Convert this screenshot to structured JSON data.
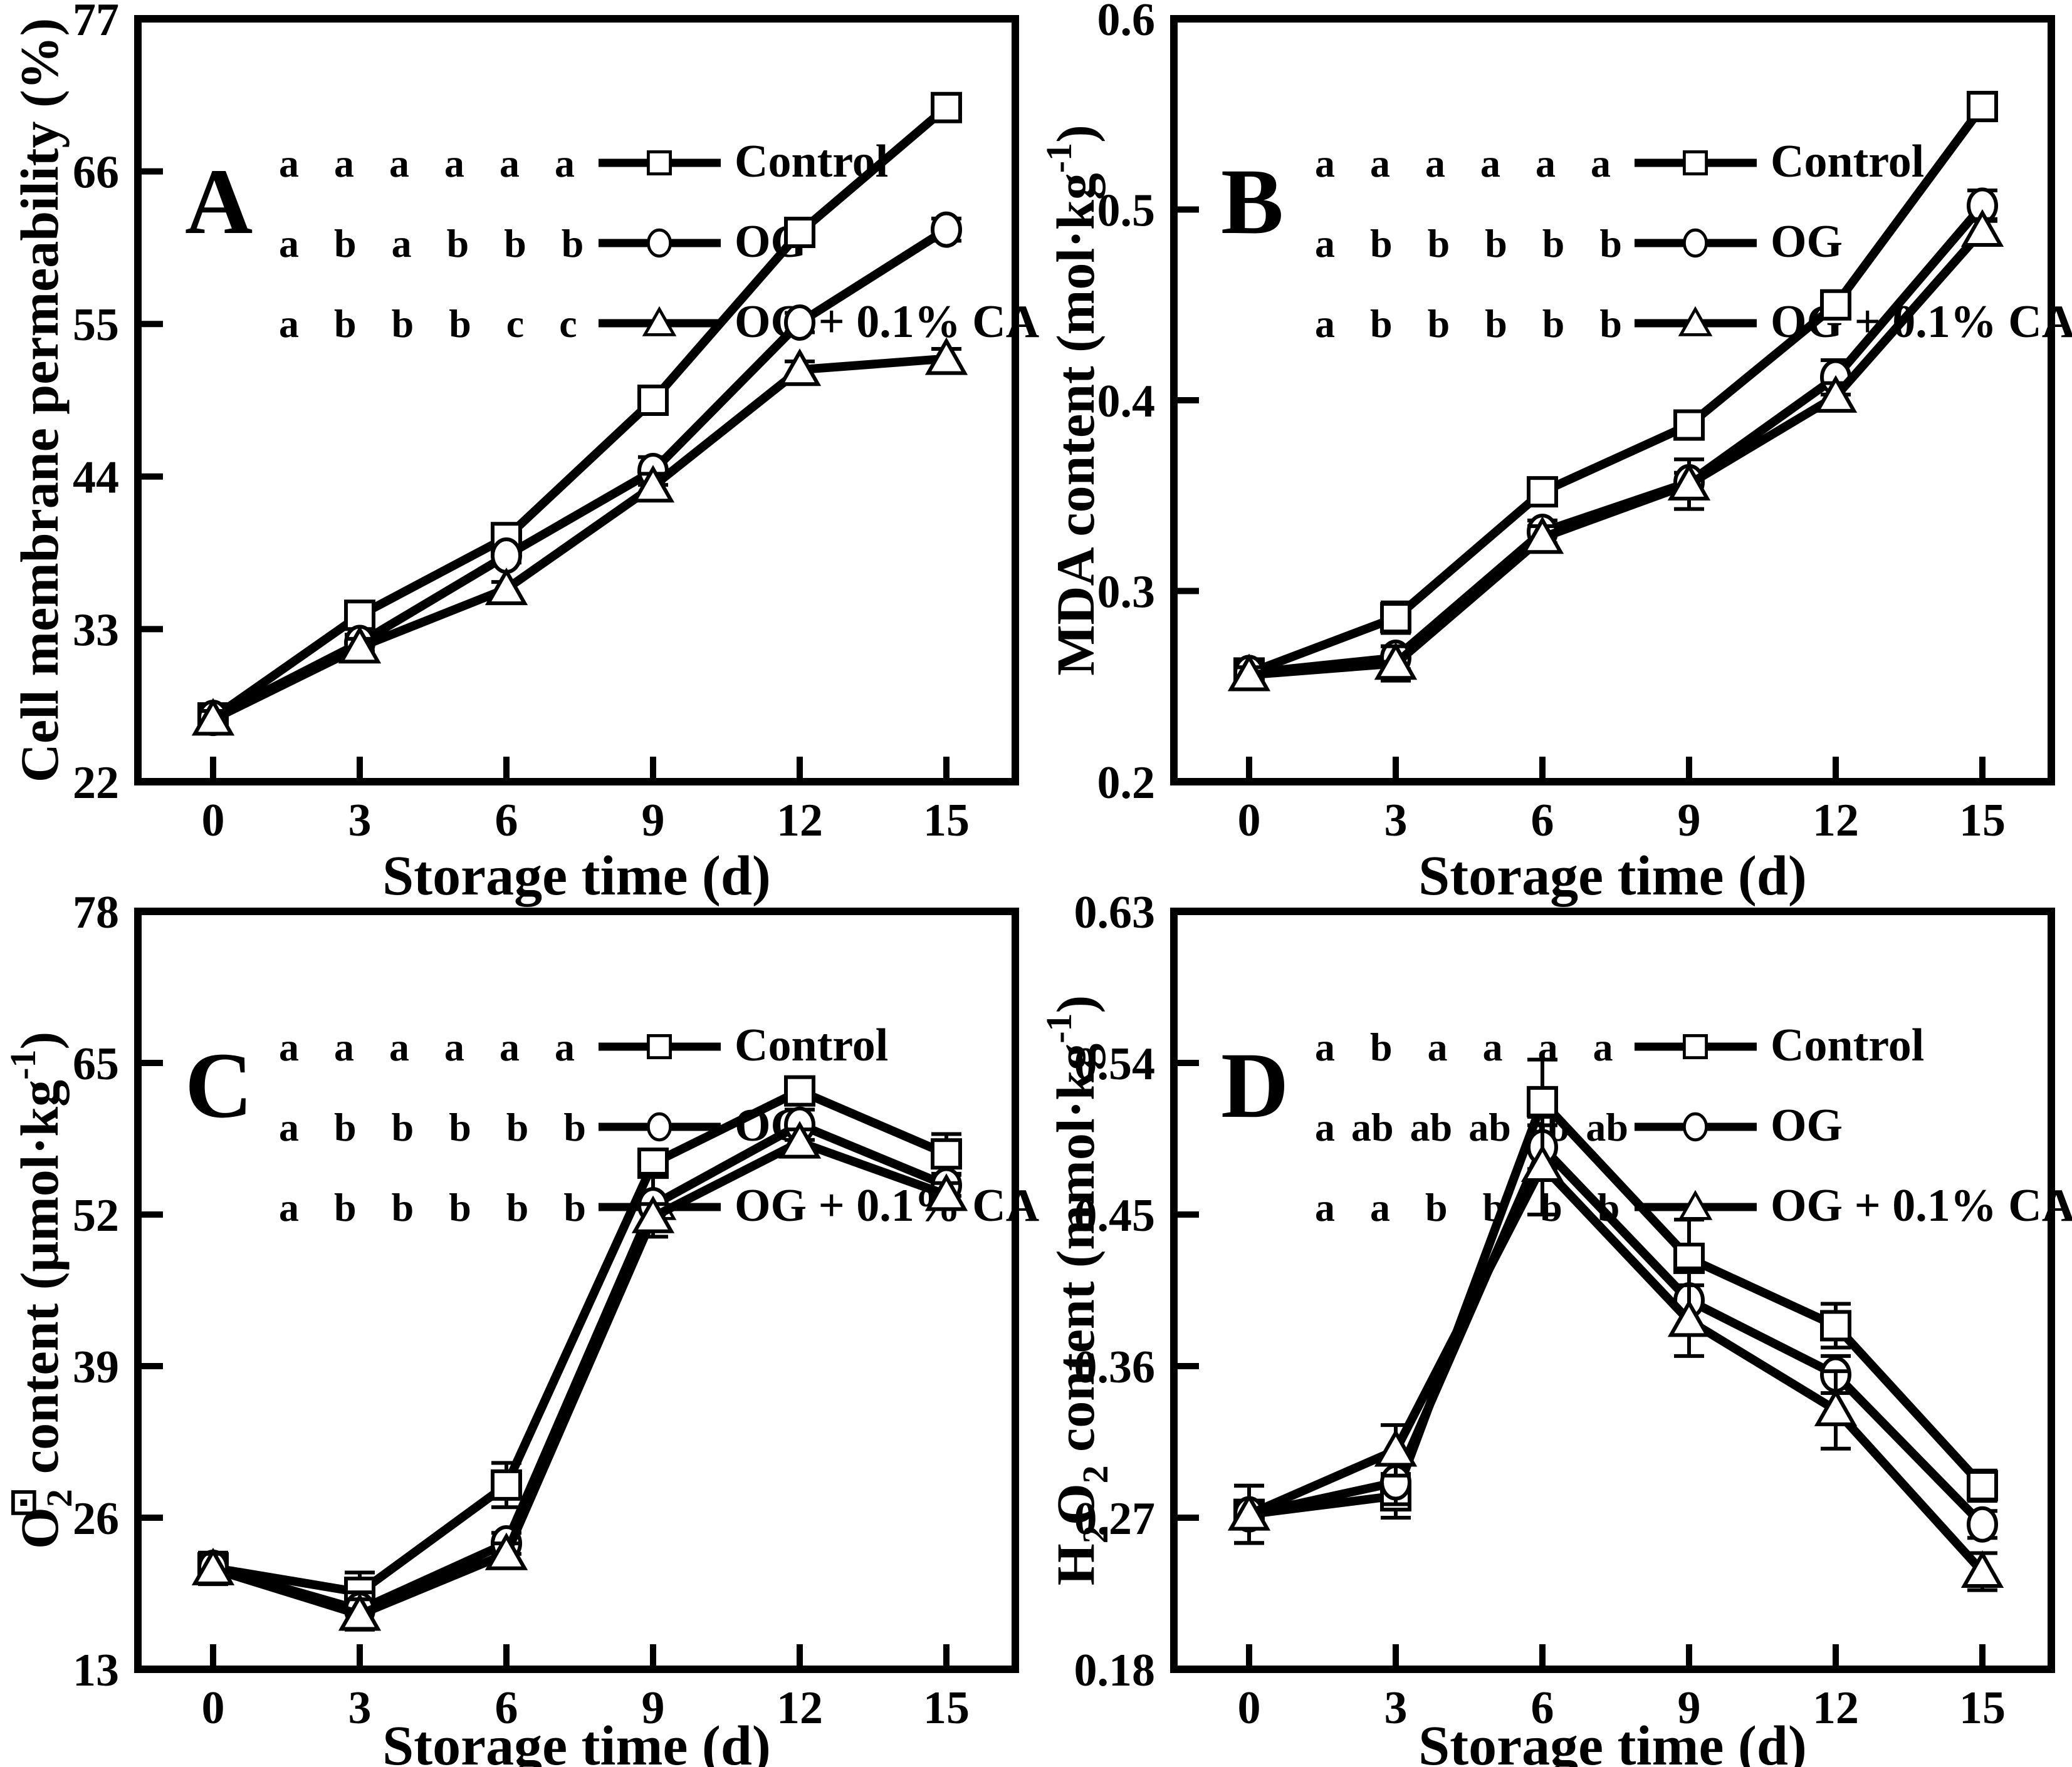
{
  "figure": {
    "background": "#ffffff",
    "ink": "#000000",
    "description": "Four-panel line figure (A-D) of fruit storage physiology measurements"
  },
  "x_axis": {
    "label": "Storage time (d)",
    "ticks": [
      "0",
      "3",
      "6",
      "9",
      "12",
      "15"
    ],
    "range": [
      0,
      15
    ]
  },
  "legend": {
    "entries": [
      {
        "label": "Control",
        "marker": "square"
      },
      {
        "label": "OG",
        "marker": "circle"
      },
      {
        "label": "OG + 0.1% CA",
        "marker": "triangle"
      }
    ]
  },
  "chart_data": [
    {
      "type": "line",
      "panel_label": "A",
      "y_label_segments": [
        {
          "t": "Cell membrane permeability (%)"
        }
      ],
      "y_ticks": [
        "22",
        "33",
        "44",
        "55",
        "66",
        "77"
      ],
      "ylim": [
        22,
        77
      ],
      "x": [
        0,
        3,
        6,
        9,
        12,
        15
      ],
      "xlabel": "Storage time (d)",
      "grid": false,
      "legend_position": "top-center",
      "series": [
        {
          "name": "Control",
          "marker": "square",
          "values": [
            26.6,
            34.0,
            39.6,
            49.5,
            61.6,
            70.6
          ],
          "errors": [
            0.5,
            0.7,
            0.6,
            0.8,
            0.6,
            0.6
          ],
          "letters": [
            "a",
            "a",
            "a",
            "a",
            "a",
            "a"
          ]
        },
        {
          "name": "OG",
          "marker": "circle",
          "values": [
            26.6,
            32.0,
            38.3,
            44.4,
            55.1,
            61.8
          ],
          "errors": [
            0.5,
            0.6,
            0.5,
            1.0,
            0.7,
            0.8
          ],
          "letters": [
            "a",
            "b",
            "a",
            "b",
            "b",
            "b"
          ]
        },
        {
          "name": "OG + 0.1% CA",
          "marker": "triangle",
          "values": [
            26.5,
            31.7,
            35.9,
            43.3,
            51.7,
            52.5
          ],
          "errors": [
            0.6,
            0.6,
            0.5,
            0.9,
            0.6,
            0.7
          ],
          "letters": [
            "a",
            "b",
            "b",
            "b",
            "c",
            "c"
          ]
        }
      ]
    },
    {
      "type": "line",
      "panel_label": "B",
      "y_label_segments": [
        {
          "t": "MDA content (mol·kg"
        },
        {
          "t": "-1",
          "sup": true
        },
        {
          "t": ")"
        }
      ],
      "y_ticks": [
        "0.2",
        "0.3",
        "0.4",
        "0.5",
        "0.6"
      ],
      "ylim": [
        0.2,
        0.6
      ],
      "x": [
        0,
        3,
        6,
        9,
        12,
        15
      ],
      "xlabel": "Storage time (d)",
      "grid": false,
      "legend_position": "top-center",
      "series": [
        {
          "name": "Control",
          "marker": "square",
          "values": [
            0.257,
            0.286,
            0.352,
            0.387,
            0.45,
            0.554
          ],
          "errors": [
            0.004,
            0.008,
            0.007,
            0.005,
            0.005,
            0.007
          ],
          "letters": [
            "a",
            "a",
            "a",
            "a",
            "a",
            "a"
          ]
        },
        {
          "name": "OG",
          "marker": "circle",
          "values": [
            0.257,
            0.265,
            0.331,
            0.357,
            0.412,
            0.502
          ],
          "errors": [
            0.004,
            0.006,
            0.006,
            0.005,
            0.009,
            0.008
          ],
          "letters": [
            "a",
            "b",
            "b",
            "b",
            "b",
            "b"
          ]
        },
        {
          "name": "OG + 0.1% CA",
          "marker": "triangle",
          "values": [
            0.256,
            0.262,
            0.328,
            0.356,
            0.402,
            0.489
          ],
          "errors": [
            0.004,
            0.009,
            0.006,
            0.013,
            0.007,
            0.006
          ],
          "letters": [
            "a",
            "b",
            "b",
            "b",
            "b",
            "b"
          ]
        }
      ]
    },
    {
      "type": "line",
      "panel_label": "C",
      "y_label_segments": [
        {
          "t": "O"
        },
        {
          "t": "2",
          "sub": true
        },
        {
          "t": "⊡",
          "sup": true,
          "dx": -46
        },
        {
          "t": " content (μmol·kg"
        },
        {
          "t": "-1",
          "sup": true
        },
        {
          "t": ")"
        }
      ],
      "y_ticks": [
        "13",
        "26",
        "39",
        "52",
        "65",
        "78"
      ],
      "ylim": [
        13,
        78
      ],
      "x": [
        0,
        3,
        6,
        9,
        12,
        15
      ],
      "xlabel": "Storage time (d)",
      "grid": false,
      "legend_position": "top-center",
      "series": [
        {
          "name": "Control",
          "marker": "square",
          "values": [
            21.7,
            19.6,
            28.8,
            56.4,
            62.6,
            57.2
          ],
          "errors": [
            1.3,
            1.7,
            1.9,
            1.1,
            0.9,
            1.7
          ],
          "letters": [
            "a",
            "a",
            "a",
            "a",
            "a",
            "a"
          ]
        },
        {
          "name": "OG",
          "marker": "circle",
          "values": [
            21.7,
            18.1,
            23.8,
            52.8,
            59.7,
            54.5
          ],
          "errors": [
            1.3,
            1.5,
            0.9,
            2.7,
            1.3,
            0.9
          ],
          "letters": [
            "a",
            "b",
            "b",
            "b",
            "b",
            "b"
          ]
        },
        {
          "name": "OG + 0.1% CA",
          "marker": "triangle",
          "values": [
            21.6,
            17.7,
            22.9,
            51.8,
            58.2,
            53.7
          ],
          "errors": [
            1.3,
            1.3,
            0.9,
            1.1,
            1.1,
            1.0
          ],
          "letters": [
            "a",
            "b",
            "b",
            "b",
            "b",
            "b"
          ]
        }
      ]
    },
    {
      "type": "line",
      "panel_label": "D",
      "y_label_segments": [
        {
          "t": "H"
        },
        {
          "t": "2",
          "sub": true
        },
        {
          "t": "O"
        },
        {
          "t": "2",
          "sub": true
        },
        {
          "t": " content (mmol·kg"
        },
        {
          "t": "-1",
          "sup": true
        },
        {
          "t": ")"
        }
      ],
      "y_ticks": [
        "0.18",
        "0.27",
        "0.36",
        "0.45",
        "0.54",
        "0.63"
      ],
      "ylim": [
        0.18,
        0.63
      ],
      "x": [
        0,
        3,
        6,
        9,
        12,
        15
      ],
      "xlabel": "Storage time (d)",
      "grid": false,
      "legend_position": "top-center",
      "series": [
        {
          "name": "Control",
          "marker": "square",
          "values": [
            0.272,
            0.283,
            0.517,
            0.424,
            0.384,
            0.289
          ],
          "errors": [
            0.017,
            0.013,
            0.025,
            0.023,
            0.013,
            0.009
          ],
          "letters": [
            "a",
            "b",
            "a",
            "a",
            "a",
            "a"
          ]
        },
        {
          "name": "OG",
          "marker": "circle",
          "values": [
            0.272,
            0.291,
            0.49,
            0.399,
            0.355,
            0.266
          ],
          "errors": [
            0.017,
            0.013,
            0.013,
            0.019,
            0.011,
            0.008
          ],
          "letters": [
            "a",
            "ab",
            "ab",
            "ab",
            "ab",
            "ab"
          ]
        },
        {
          "name": "OG + 0.1% CA",
          "marker": "triangle",
          "values": [
            0.272,
            0.31,
            0.479,
            0.387,
            0.334,
            0.238
          ],
          "errors": [
            0.017,
            0.015,
            0.029,
            0.021,
            0.023,
            0.011
          ],
          "letters": [
            "a",
            "a",
            "b",
            "b",
            "b",
            "b"
          ]
        }
      ]
    }
  ]
}
